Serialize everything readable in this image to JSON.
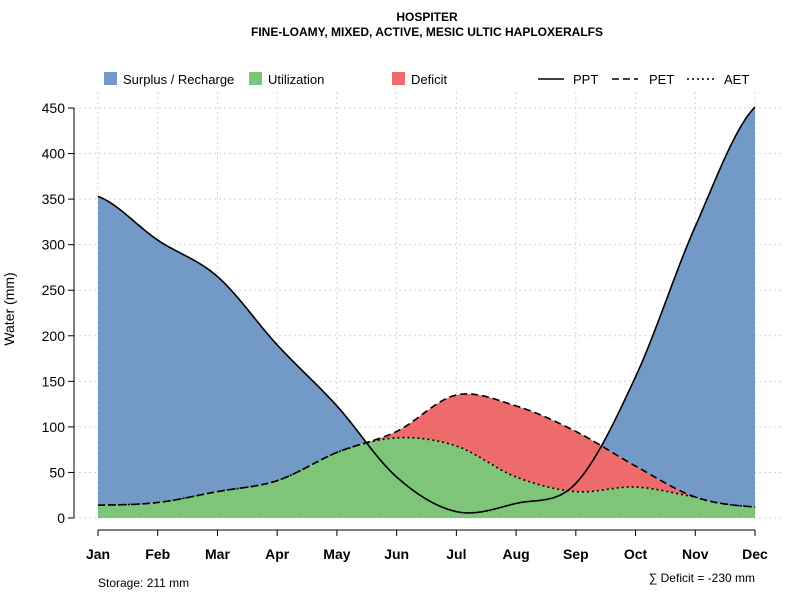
{
  "chart_data": {
    "type": "area",
    "title": "HOSPITER",
    "subtitle": "FINE-LOAMY, MIXED, ACTIVE, MESIC ULTIC HAPLOXERALFS",
    "xlabel": "",
    "ylabel": "Water (mm)",
    "ylim": [
      0,
      450
    ],
    "yticks": [
      0,
      50,
      100,
      150,
      200,
      250,
      300,
      350,
      400,
      450
    ],
    "categories": [
      "Jan",
      "Feb",
      "Mar",
      "Apr",
      "May",
      "Jun",
      "Jul",
      "Aug",
      "Sep",
      "Oct",
      "Nov",
      "Dec"
    ],
    "grid": true,
    "series": [
      {
        "name": "PPT",
        "line_style": "solid",
        "values": [
          353,
          305,
          265,
          190,
          123,
          45,
          7,
          16,
          38,
          155,
          320,
          451
        ]
      },
      {
        "name": "PET",
        "line_style": "dashed",
        "values": [
          14,
          17,
          29,
          41,
          72,
          95,
          135,
          123,
          95,
          57,
          23,
          12
        ]
      },
      {
        "name": "AET",
        "line_style": "dotted",
        "values": [
          14,
          17,
          29,
          41,
          72,
          88,
          79,
          45,
          29,
          34,
          23,
          12
        ]
      }
    ],
    "legend": {
      "placement": "top",
      "fills": [
        {
          "label": "Surplus / Recharge",
          "color": "#7399c6"
        },
        {
          "label": "Utilization",
          "color": "#7ec57a"
        },
        {
          "label": "Deficit",
          "color": "#ed6b6b"
        }
      ],
      "lines": [
        {
          "label": "PPT",
          "style": "solid"
        },
        {
          "label": "PET",
          "style": "dashed"
        },
        {
          "label": "AET",
          "style": "dotted"
        }
      ]
    },
    "storage_label": "Storage: 211 mm",
    "deficit_label": "∑ Deficit = -230 mm"
  }
}
